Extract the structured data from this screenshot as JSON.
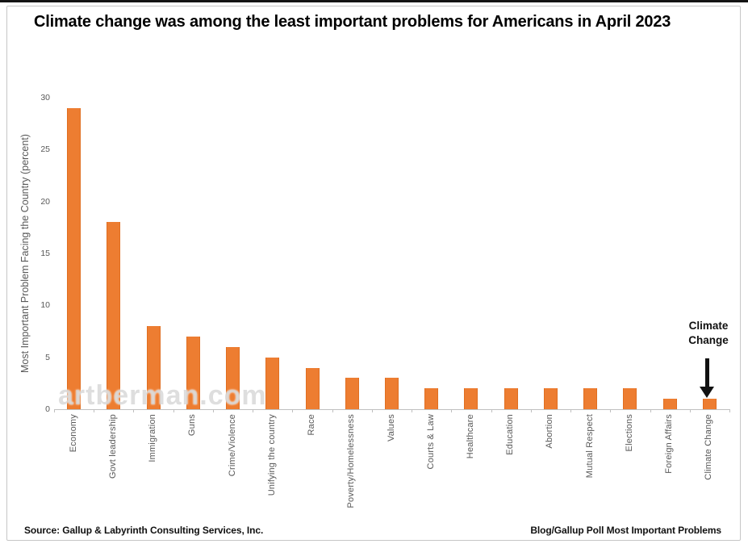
{
  "title": "Climate change was among the least important problems for Americans in April 2023",
  "watermark": "artberman.com",
  "annotation": {
    "label": "Climate Change"
  },
  "footer": {
    "source": "Source: Gallup & Labyrinth Consulting Services, Inc.",
    "right": "Blog/Gallup Poll Most Important Problems"
  },
  "colors": {
    "bar": "#ED7D31",
    "bar_border": "#E06F22",
    "axis_text": "#595959",
    "axis_line": "#BFBFBF",
    "title_text": "#000000"
  },
  "chart_data": {
    "type": "bar",
    "title": "Climate change was among the least important problems for Americans in April 2023",
    "categories": [
      "Economy",
      "Govt leadership",
      "Immigration",
      "Guns",
      "Crime/Violence",
      "Unifying the country",
      "Race",
      "Poverty/Homelessness",
      "Values",
      "Courts & Law",
      "Healthcare",
      "Education",
      "Abortion",
      "Mutual Respect",
      "Elections",
      "Foreign Affairs",
      "Climate Change"
    ],
    "values": [
      29,
      18,
      8,
      7,
      6,
      5,
      4,
      3,
      3,
      2,
      2,
      2,
      2,
      2,
      2,
      1,
      1
    ],
    "xlabel": "",
    "ylabel": "Most Important Problem Facing the Country (percent)",
    "ylim": [
      0,
      30
    ],
    "yticks": [
      0,
      5,
      10,
      15,
      20,
      25,
      30
    ],
    "grid": false,
    "legend_position": "none",
    "annotation": {
      "text": "Climate Change",
      "target_category": "Climate Change"
    }
  }
}
